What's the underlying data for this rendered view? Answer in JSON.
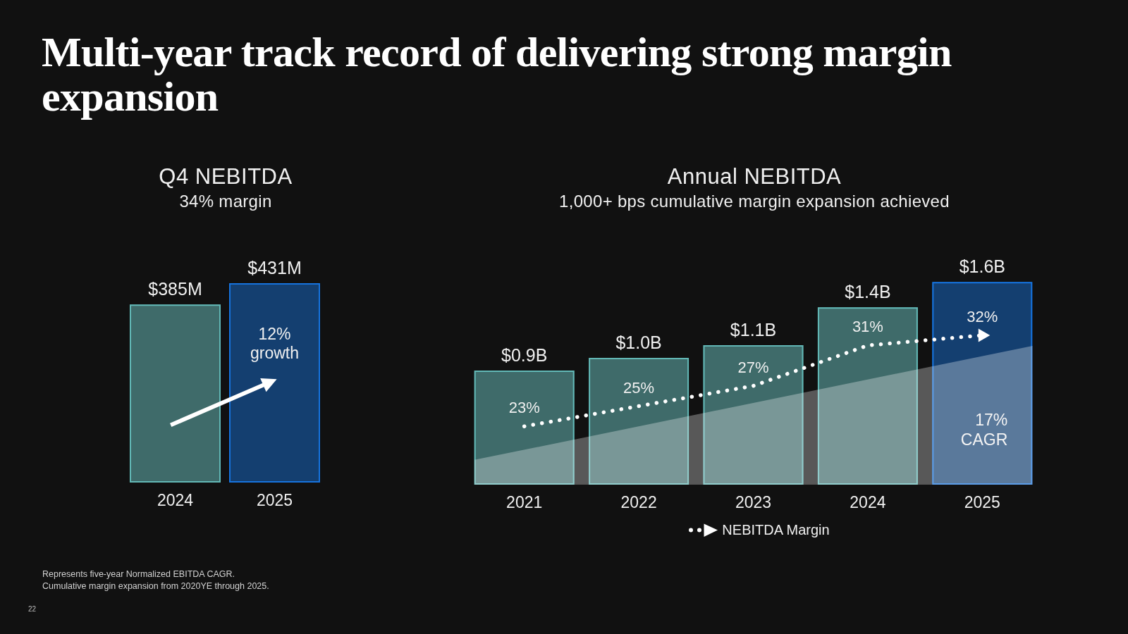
{
  "chart_data": [
    {
      "type": "other",
      "title": "Multi-year track record of delivering strong margin expansion",
      "annotations": [
        "Represents five-year Normalized EBITDA CAGR.",
        "Cumulative margin expansion from 2020YE through 2025.",
        "22"
      ]
    },
    {
      "type": "bar",
      "title": "Q4 NEBITDA",
      "subtitle": "34% margin",
      "categories": [
        "2024",
        "2025"
      ],
      "values": [
        385,
        431
      ],
      "colors": [
        "#3f6b6a",
        "#143f70"
      ],
      "value_labels": [
        "$385M",
        "$431M"
      ],
      "annotations": [
        "12% growth"
      ],
      "tick_labels": "x"
    },
    {
      "type": "bar",
      "title": "Annual NEBITDA",
      "subtitle": "1,000+ bps cumulative margin expansion achieved",
      "categories": [
        "2021",
        "2022",
        "2023",
        "2024",
        "2025"
      ],
      "series": [
        {
          "type": "bar",
          "colors": [
            "#3f6b6a",
            "#3f6b6a",
            "#3f6b6a",
            "#3f6b6a",
            "#143f70"
          ],
          "values": [
            0.9,
            1.0,
            1.1,
            1.4,
            1.6
          ],
          "value_labels": [
            "$0.9B",
            "$1.0B",
            "$1.1B",
            "$1.4B",
            "$1.6B"
          ]
        },
        {
          "type": "line",
          "name": "NEBITDA Margin",
          "axis": "y2",
          "color": "#ffffff",
          "values": [
            23,
            25,
            27,
            31,
            32
          ],
          "value_labels": [
            "23%",
            "25%",
            "27%",
            "31%",
            "32%"
          ]
        }
      ],
      "line_style": "dotted",
      "legend": "bottom",
      "annotations": [
        "17% CAGR"
      ],
      "tick_labels": "x"
    }
  ]
}
